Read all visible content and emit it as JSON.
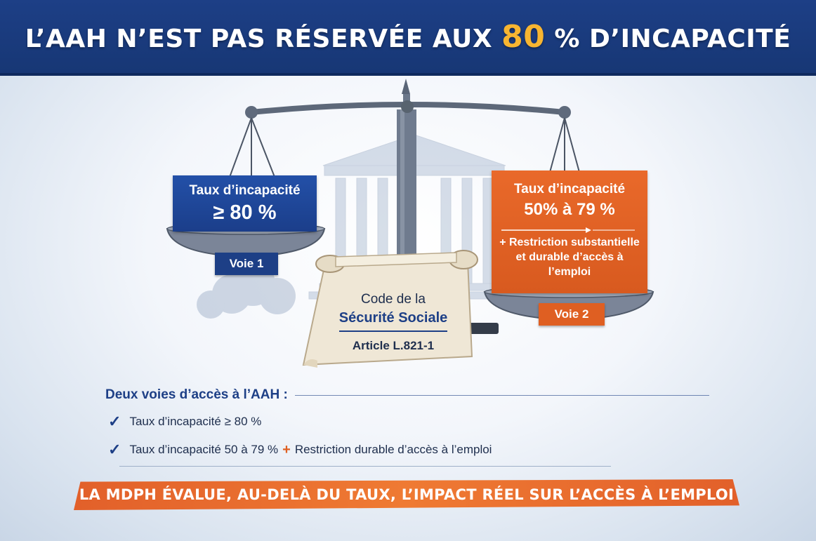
{
  "header": {
    "title_part1": "L’AAH N’EST PAS RÉSERVÉE AUX ",
    "title_highlight": "80",
    "title_part2": " % D’INCAPACITÉ"
  },
  "left_panel": {
    "line1": "Taux d’incapacité",
    "line2": "≥ 80 %",
    "badge": "Voie 1"
  },
  "right_panel": {
    "line1": "Taux d’incapacité",
    "line2": "50% à 79 %",
    "line3": "+ Restriction substantielle et durable d’accès à l’emploi",
    "badge": "Voie 2"
  },
  "scroll": {
    "line1": "Code de la",
    "line2": "Sécurité Sociale",
    "line3": "Article L.821-1"
  },
  "list": {
    "heading": "Deux voies d’accès à l’AAH :",
    "item1": "Taux d’incapacité ≥ 80 %",
    "item2_a": "Taux d’incapacité 50 à 79 %",
    "item2_plus": "+",
    "item2_b": "Restriction durable d’accès à l’emploi"
  },
  "banner": {
    "text": "LA MDPH ÉVALUE, AU-DELÀ DU TAUX, L’IMPACT RÉEL SUR L’ACCÈS À L’EMPLOI"
  },
  "colors": {
    "navy": "#1d3f86",
    "orange": "#df5f22",
    "gold": "#f7b531"
  },
  "icons": [
    "scale-icon",
    "building-icon",
    "scroll-icon",
    "check-icon"
  ]
}
